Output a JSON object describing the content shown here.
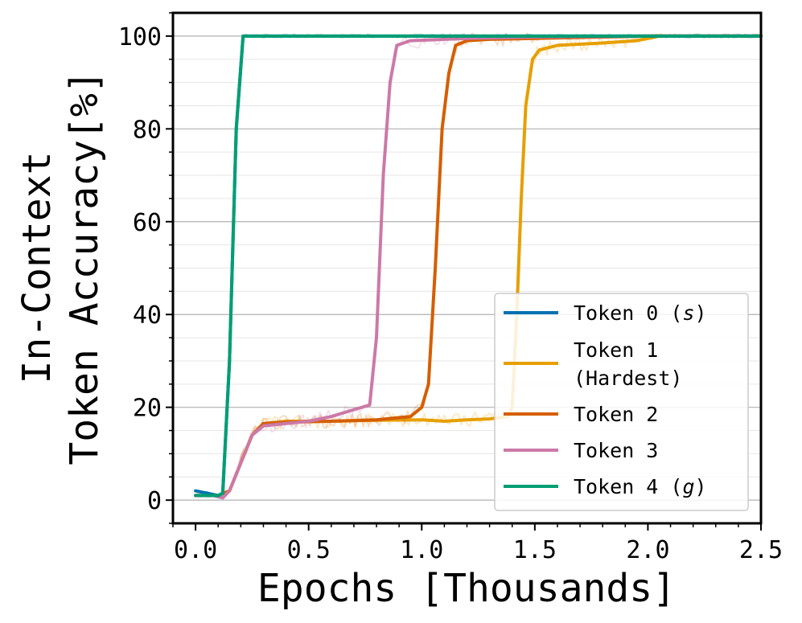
{
  "chart_data": {
    "type": "line",
    "xlabel": "Epochs [Thousands]",
    "ylabel_lines": [
      "In-Context",
      "Token Accuracy[%]"
    ],
    "xlim": [
      -0.1,
      2.5
    ],
    "ylim": [
      -5,
      105
    ],
    "xticks": [
      {
        "value": 0.0,
        "label": "0.0"
      },
      {
        "value": 0.5,
        "label": "0.5"
      },
      {
        "value": 1.0,
        "label": "1.0"
      },
      {
        "value": 1.5,
        "label": "1.5"
      },
      {
        "value": 2.0,
        "label": "2.0"
      },
      {
        "value": 2.5,
        "label": "2.5"
      }
    ],
    "yticks": [
      {
        "value": 0,
        "label": "0"
      },
      {
        "value": 20,
        "label": "20"
      },
      {
        "value": 40,
        "label": "40"
      },
      {
        "value": 60,
        "label": "60"
      },
      {
        "value": 80,
        "label": "80"
      },
      {
        "value": 100,
        "label": "100"
      }
    ],
    "grid": true,
    "legend_position": "bottom-right",
    "series": [
      {
        "name": "Token 0 (s)",
        "legend_lines": [
          "Token 0 (",
          "s",
          ")"
        ],
        "color": "#0072b2",
        "points": [
          [
            0.0,
            2
          ],
          [
            0.05,
            1.5
          ],
          [
            0.1,
            1
          ],
          [
            0.12,
            1.5
          ],
          [
            0.15,
            30
          ],
          [
            0.18,
            80
          ],
          [
            0.21,
            100
          ],
          [
            2.5,
            100
          ]
        ]
      },
      {
        "name": "Token 1 (Hardest)",
        "legend_lines": [
          "Token 1",
          "(Hardest)"
        ],
        "color": "#e69f00",
        "points": [
          [
            0.0,
            1
          ],
          [
            0.1,
            1
          ],
          [
            0.15,
            2
          ],
          [
            0.2,
            8
          ],
          [
            0.25,
            14
          ],
          [
            0.3,
            16.5
          ],
          [
            0.4,
            17
          ],
          [
            0.6,
            17
          ],
          [
            0.8,
            17.2
          ],
          [
            1.0,
            17.3
          ],
          [
            1.1,
            17
          ],
          [
            1.2,
            17.3
          ],
          [
            1.3,
            17.5
          ],
          [
            1.38,
            18
          ],
          [
            1.4,
            20
          ],
          [
            1.42,
            40
          ],
          [
            1.44,
            65
          ],
          [
            1.46,
            85
          ],
          [
            1.49,
            95
          ],
          [
            1.52,
            97
          ],
          [
            1.6,
            98
          ],
          [
            1.8,
            98.5
          ],
          [
            1.95,
            99
          ],
          [
            2.05,
            100
          ],
          [
            2.5,
            100
          ]
        ]
      },
      {
        "name": "Token 2",
        "legend_lines": [
          "Token 2"
        ],
        "color": "#d55e00",
        "points": [
          [
            0.0,
            1
          ],
          [
            0.1,
            1
          ],
          [
            0.15,
            2
          ],
          [
            0.2,
            8
          ],
          [
            0.25,
            14
          ],
          [
            0.3,
            16.5
          ],
          [
            0.4,
            16.8
          ],
          [
            0.6,
            17
          ],
          [
            0.8,
            17.3
          ],
          [
            0.95,
            18
          ],
          [
            1.0,
            20
          ],
          [
            1.03,
            25
          ],
          [
            1.06,
            50
          ],
          [
            1.09,
            80
          ],
          [
            1.12,
            92
          ],
          [
            1.15,
            98
          ],
          [
            1.2,
            99
          ],
          [
            1.3,
            99.3
          ],
          [
            1.5,
            99.5
          ],
          [
            1.7,
            99.7
          ],
          [
            2.0,
            100
          ],
          [
            2.5,
            100
          ]
        ]
      },
      {
        "name": "Token 3",
        "legend_lines": [
          "Token 3"
        ],
        "color": "#cc79a7",
        "points": [
          [
            0.0,
            1
          ],
          [
            0.08,
            1
          ],
          [
            0.12,
            0.5
          ],
          [
            0.15,
            2
          ],
          [
            0.2,
            8
          ],
          [
            0.25,
            14
          ],
          [
            0.3,
            16
          ],
          [
            0.4,
            16.5
          ],
          [
            0.5,
            17
          ],
          [
            0.6,
            18
          ],
          [
            0.7,
            19.5
          ],
          [
            0.77,
            20.5
          ],
          [
            0.8,
            35
          ],
          [
            0.83,
            70
          ],
          [
            0.86,
            90
          ],
          [
            0.89,
            98
          ],
          [
            0.95,
            99
          ],
          [
            1.05,
            99.2
          ],
          [
            1.2,
            99.5
          ],
          [
            1.5,
            99.8
          ],
          [
            2.0,
            100
          ],
          [
            2.5,
            100
          ]
        ]
      },
      {
        "name": "Token 4 (g)",
        "legend_lines": [
          "Token 4 (",
          "g",
          ")"
        ],
        "color": "#009e73",
        "points": [
          [
            0.0,
            1
          ],
          [
            0.1,
            1
          ],
          [
            0.12,
            1.5
          ],
          [
            0.15,
            30
          ],
          [
            0.18,
            80
          ],
          [
            0.21,
            100
          ],
          [
            2.5,
            100
          ]
        ]
      }
    ]
  }
}
